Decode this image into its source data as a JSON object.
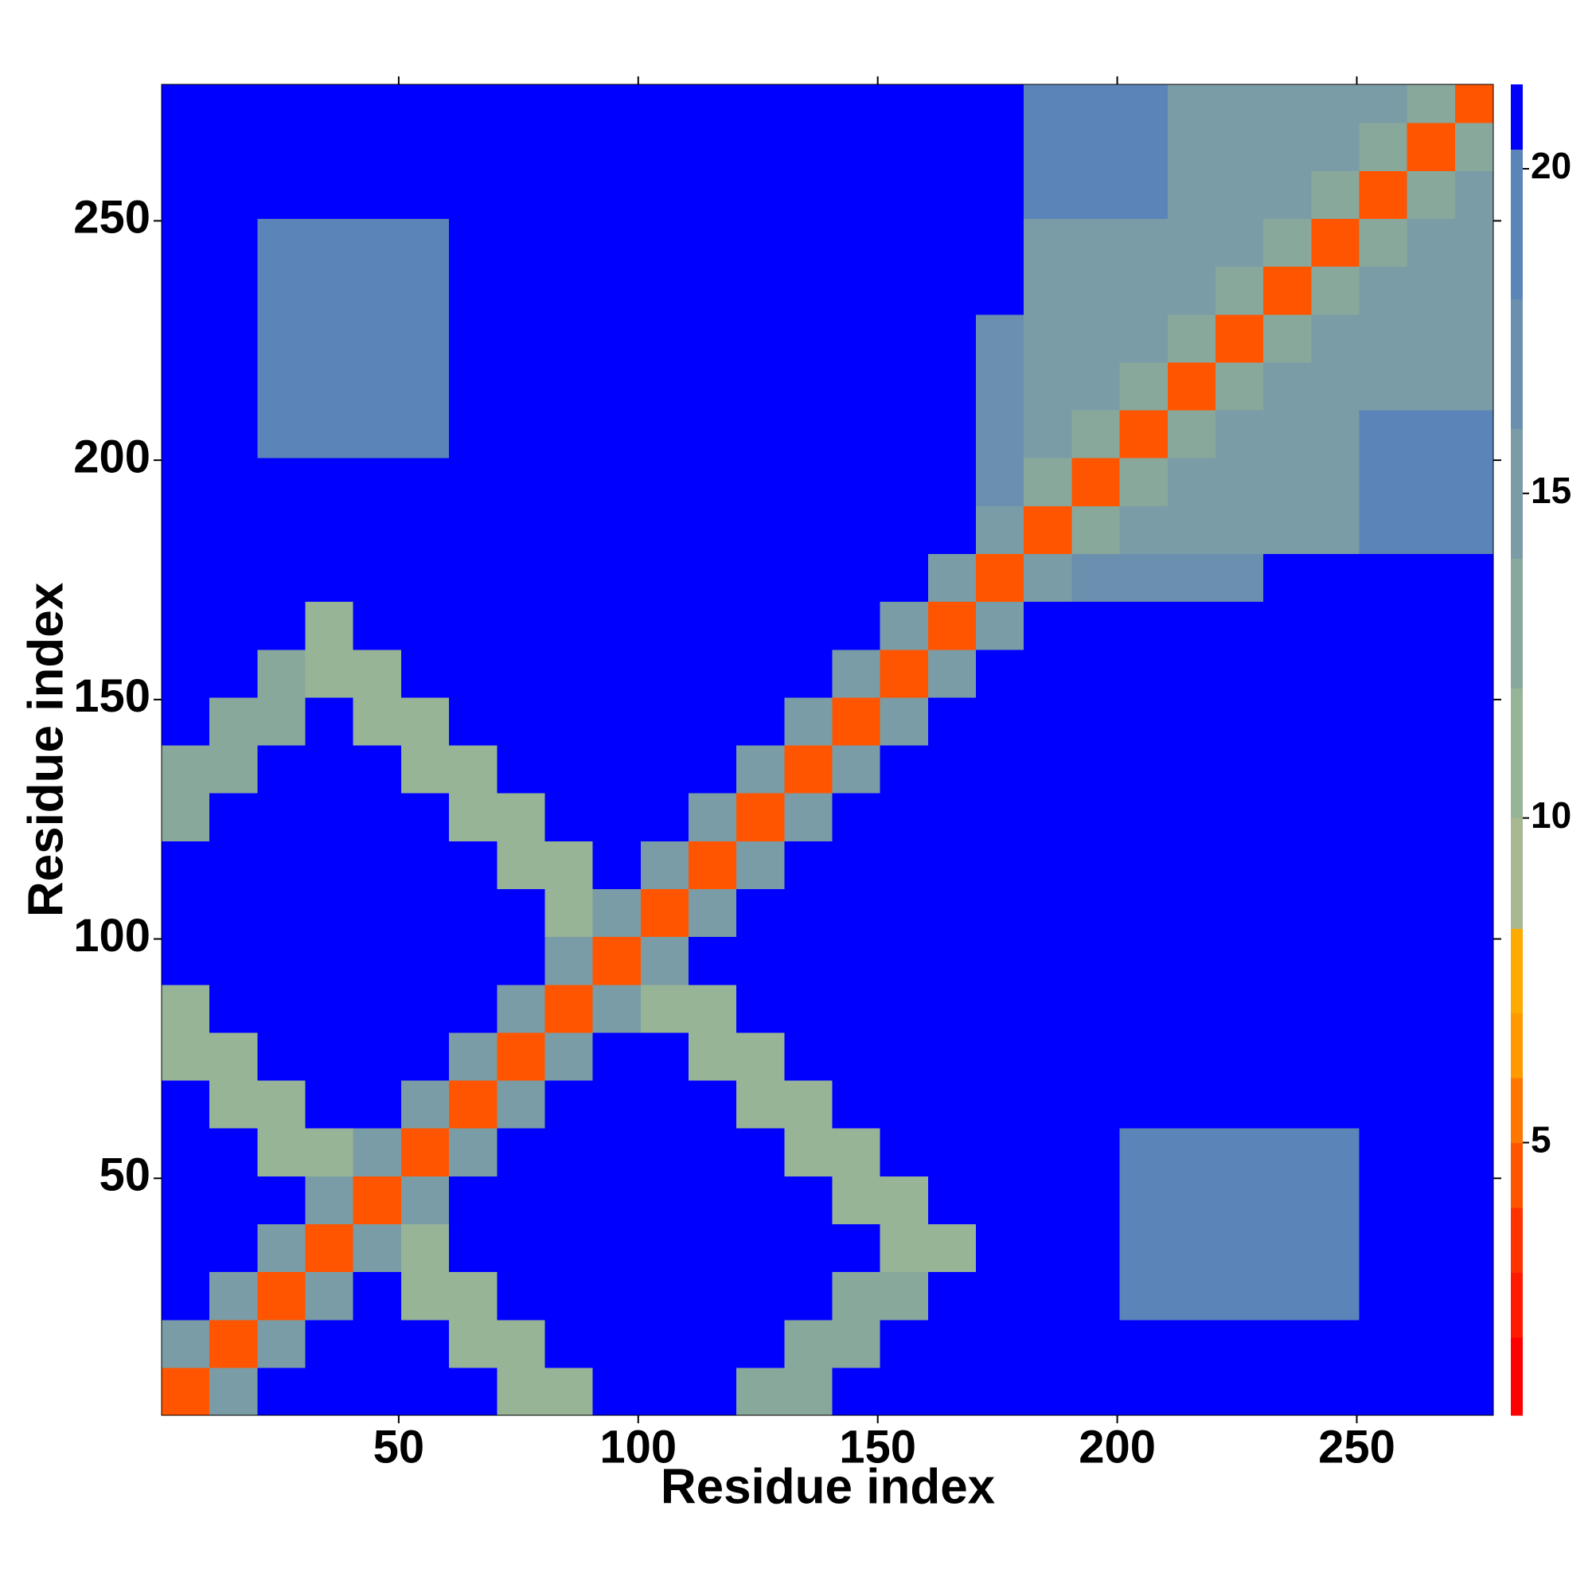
{
  "chart_data": {
    "type": "heatmap",
    "xlabel": "Residue index",
    "ylabel": "Residue index",
    "xlim": [
      0.5,
      278.5
    ],
    "ylim": [
      0.5,
      278.5
    ],
    "xticks": [
      50,
      100,
      150,
      200,
      250
    ],
    "yticks": [
      50,
      100,
      150,
      200,
      250
    ],
    "xbins": [
      0.5,
      10.5,
      20.5,
      30.5,
      40.5,
      50.5,
      60.5,
      70.5,
      80.5,
      90.5,
      100.5,
      110.5,
      120.5,
      130.5,
      140.5,
      150.5,
      160.5,
      170.5,
      180.5,
      190.5,
      200.5,
      210.5,
      220.5,
      230.5,
      240.5,
      250.5,
      260.5,
      270.5,
      278.5
    ],
    "ybins": [
      0.5,
      10.5,
      20.5,
      30.5,
      40.5,
      50.5,
      60.5,
      70.5,
      80.5,
      90.5,
      100.5,
      110.5,
      120.5,
      130.5,
      140.5,
      150.5,
      160.5,
      170.5,
      180.5,
      190.5,
      200.5,
      210.5,
      220.5,
      230.5,
      240.5,
      250.5,
      260.5,
      270.5,
      278.5
    ],
    "z": [
      [
        4,
        14,
        21,
        21,
        21,
        21,
        21,
        11,
        11,
        21,
        21,
        21,
        12,
        12,
        21,
        21,
        21,
        21,
        21,
        21,
        21,
        21,
        21,
        21,
        21,
        21,
        21,
        21
      ],
      [
        14,
        4,
        14,
        21,
        21,
        21,
        11,
        11,
        21,
        21,
        21,
        21,
        21,
        12,
        12,
        21,
        21,
        21,
        21,
        21,
        21,
        21,
        21,
        21,
        21,
        21,
        21,
        21
      ],
      [
        21,
        14,
        4,
        14,
        21,
        11,
        11,
        21,
        21,
        21,
        21,
        21,
        21,
        21,
        12,
        12,
        21,
        21,
        21,
        21,
        19,
        19,
        19,
        19,
        19,
        21,
        21,
        21
      ],
      [
        21,
        21,
        14,
        4,
        14,
        11,
        21,
        21,
        21,
        21,
        21,
        21,
        21,
        21,
        21,
        11,
        11,
        21,
        21,
        21,
        19,
        19,
        19,
        19,
        19,
        21,
        21,
        21
      ],
      [
        21,
        21,
        21,
        14,
        4,
        14,
        21,
        21,
        21,
        21,
        21,
        21,
        21,
        21,
        11,
        11,
        21,
        21,
        21,
        21,
        19,
        19,
        19,
        19,
        19,
        21,
        21,
        21
      ],
      [
        21,
        21,
        11,
        11,
        14,
        4,
        14,
        21,
        21,
        21,
        21,
        21,
        21,
        11,
        11,
        21,
        21,
        21,
        21,
        21,
        19,
        19,
        19,
        19,
        19,
        21,
        21,
        21
      ],
      [
        21,
        11,
        11,
        21,
        21,
        14,
        4,
        14,
        21,
        21,
        21,
        21,
        11,
        11,
        21,
        21,
        21,
        21,
        21,
        21,
        21,
        21,
        21,
        21,
        21,
        21,
        21,
        21
      ],
      [
        11,
        11,
        21,
        21,
        21,
        21,
        14,
        4,
        14,
        21,
        21,
        11,
        11,
        21,
        21,
        21,
        21,
        21,
        21,
        21,
        21,
        21,
        21,
        21,
        21,
        21,
        21,
        21
      ],
      [
        11,
        21,
        21,
        21,
        21,
        21,
        21,
        14,
        4,
        14,
        11,
        11,
        21,
        21,
        21,
        21,
        21,
        21,
        21,
        21,
        21,
        21,
        21,
        21,
        21,
        21,
        21,
        21
      ],
      [
        21,
        21,
        21,
        21,
        21,
        21,
        21,
        21,
        14,
        4,
        14,
        21,
        21,
        21,
        21,
        21,
        21,
        21,
        21,
        21,
        21,
        21,
        21,
        21,
        21,
        21,
        21,
        21
      ],
      [
        21,
        21,
        21,
        21,
        21,
        21,
        21,
        21,
        11,
        14,
        4,
        14,
        21,
        21,
        21,
        21,
        21,
        21,
        21,
        21,
        21,
        21,
        21,
        21,
        21,
        21,
        21,
        21
      ],
      [
        21,
        21,
        21,
        21,
        21,
        21,
        21,
        11,
        11,
        21,
        14,
        4,
        14,
        21,
        21,
        21,
        21,
        21,
        21,
        21,
        21,
        21,
        21,
        21,
        21,
        21,
        21,
        21
      ],
      [
        12,
        21,
        21,
        21,
        21,
        21,
        11,
        11,
        21,
        21,
        21,
        14,
        4,
        14,
        21,
        21,
        21,
        21,
        21,
        21,
        21,
        21,
        21,
        21,
        21,
        21,
        21,
        21
      ],
      [
        12,
        12,
        21,
        21,
        21,
        11,
        11,
        21,
        21,
        21,
        21,
        21,
        14,
        4,
        14,
        21,
        21,
        21,
        21,
        21,
        21,
        21,
        21,
        21,
        21,
        21,
        21,
        21
      ],
      [
        21,
        12,
        12,
        21,
        11,
        11,
        21,
        21,
        21,
        21,
        21,
        21,
        21,
        14,
        4,
        14,
        21,
        21,
        21,
        21,
        21,
        21,
        21,
        21,
        21,
        21,
        21,
        21
      ],
      [
        21,
        21,
        12,
        11,
        11,
        21,
        21,
        21,
        21,
        21,
        21,
        21,
        21,
        21,
        14,
        4,
        14,
        21,
        21,
        21,
        21,
        21,
        21,
        21,
        21,
        21,
        21,
        21
      ],
      [
        21,
        21,
        21,
        11,
        21,
        21,
        21,
        21,
        21,
        21,
        21,
        21,
        21,
        21,
        21,
        14,
        4,
        14,
        21,
        21,
        21,
        21,
        21,
        21,
        21,
        21,
        21,
        21
      ],
      [
        21,
        21,
        21,
        21,
        21,
        21,
        21,
        21,
        21,
        21,
        21,
        21,
        21,
        21,
        21,
        21,
        14,
        4,
        14,
        17,
        17,
        17,
        17,
        21,
        21,
        21,
        21,
        21
      ],
      [
        21,
        21,
        21,
        21,
        21,
        21,
        21,
        21,
        21,
        21,
        21,
        21,
        21,
        21,
        21,
        21,
        21,
        14,
        4,
        12,
        15,
        15,
        15,
        15,
        15,
        20,
        20,
        20
      ],
      [
        21,
        21,
        21,
        21,
        21,
        21,
        21,
        21,
        21,
        21,
        21,
        21,
        21,
        21,
        21,
        21,
        21,
        17,
        12,
        4,
        12,
        15,
        15,
        15,
        15,
        20,
        20,
        20
      ],
      [
        21,
        21,
        19,
        19,
        19,
        19,
        21,
        21,
        21,
        21,
        21,
        21,
        21,
        21,
        21,
        21,
        21,
        17,
        15,
        12,
        4,
        12,
        15,
        15,
        15,
        20,
        20,
        20
      ],
      [
        21,
        21,
        19,
        19,
        19,
        19,
        21,
        21,
        21,
        21,
        21,
        21,
        21,
        21,
        21,
        21,
        21,
        17,
        15,
        15,
        12,
        4,
        12,
        15,
        15,
        15,
        15,
        15
      ],
      [
        21,
        21,
        19,
        19,
        19,
        19,
        21,
        21,
        21,
        21,
        21,
        21,
        21,
        21,
        21,
        21,
        21,
        17,
        15,
        15,
        15,
        12,
        4,
        12,
        15,
        15,
        15,
        15
      ],
      [
        21,
        21,
        19,
        19,
        19,
        19,
        21,
        21,
        21,
        21,
        21,
        21,
        21,
        21,
        21,
        21,
        21,
        21,
        15,
        15,
        15,
        15,
        12,
        4,
        12,
        15,
        15,
        15
      ],
      [
        21,
        21,
        19,
        19,
        19,
        19,
        21,
        21,
        21,
        21,
        21,
        21,
        21,
        21,
        21,
        21,
        21,
        21,
        15,
        15,
        15,
        15,
        15,
        12,
        4,
        12,
        15,
        15
      ],
      [
        21,
        21,
        21,
        21,
        21,
        21,
        21,
        21,
        21,
        21,
        21,
        21,
        21,
        21,
        21,
        21,
        21,
        21,
        20,
        20,
        20,
        15,
        15,
        15,
        12,
        4,
        12,
        15
      ],
      [
        21,
        21,
        21,
        21,
        21,
        21,
        21,
        21,
        21,
        21,
        21,
        21,
        21,
        21,
        21,
        21,
        21,
        21,
        20,
        20,
        20,
        15,
        15,
        15,
        15,
        12,
        4,
        12
      ],
      [
        21,
        21,
        21,
        21,
        21,
        21,
        21,
        21,
        21,
        21,
        21,
        21,
        21,
        21,
        21,
        21,
        21,
        21,
        20,
        20,
        20,
        15,
        15,
        15,
        15,
        15,
        12,
        4
      ]
    ],
    "zlim": [
      0.8,
      21.3
    ],
    "zticks": [
      5,
      10,
      15,
      20
    ],
    "levels": [
      0.8,
      2,
      3,
      4,
      5,
      6,
      7,
      8.3,
      10,
      12,
      14,
      16,
      18,
      20.3,
      21.3
    ],
    "colors": [
      "#ff0000",
      "#ff1a00",
      "#ff3300",
      "#ff5500",
      "#ff7700",
      "#ff9900",
      "#ffaa00",
      "#a8b890",
      "#98b496",
      "#88a89c",
      "#7a9ca6",
      "#6b8fae",
      "#5b84b8",
      "#0000ff"
    ]
  }
}
